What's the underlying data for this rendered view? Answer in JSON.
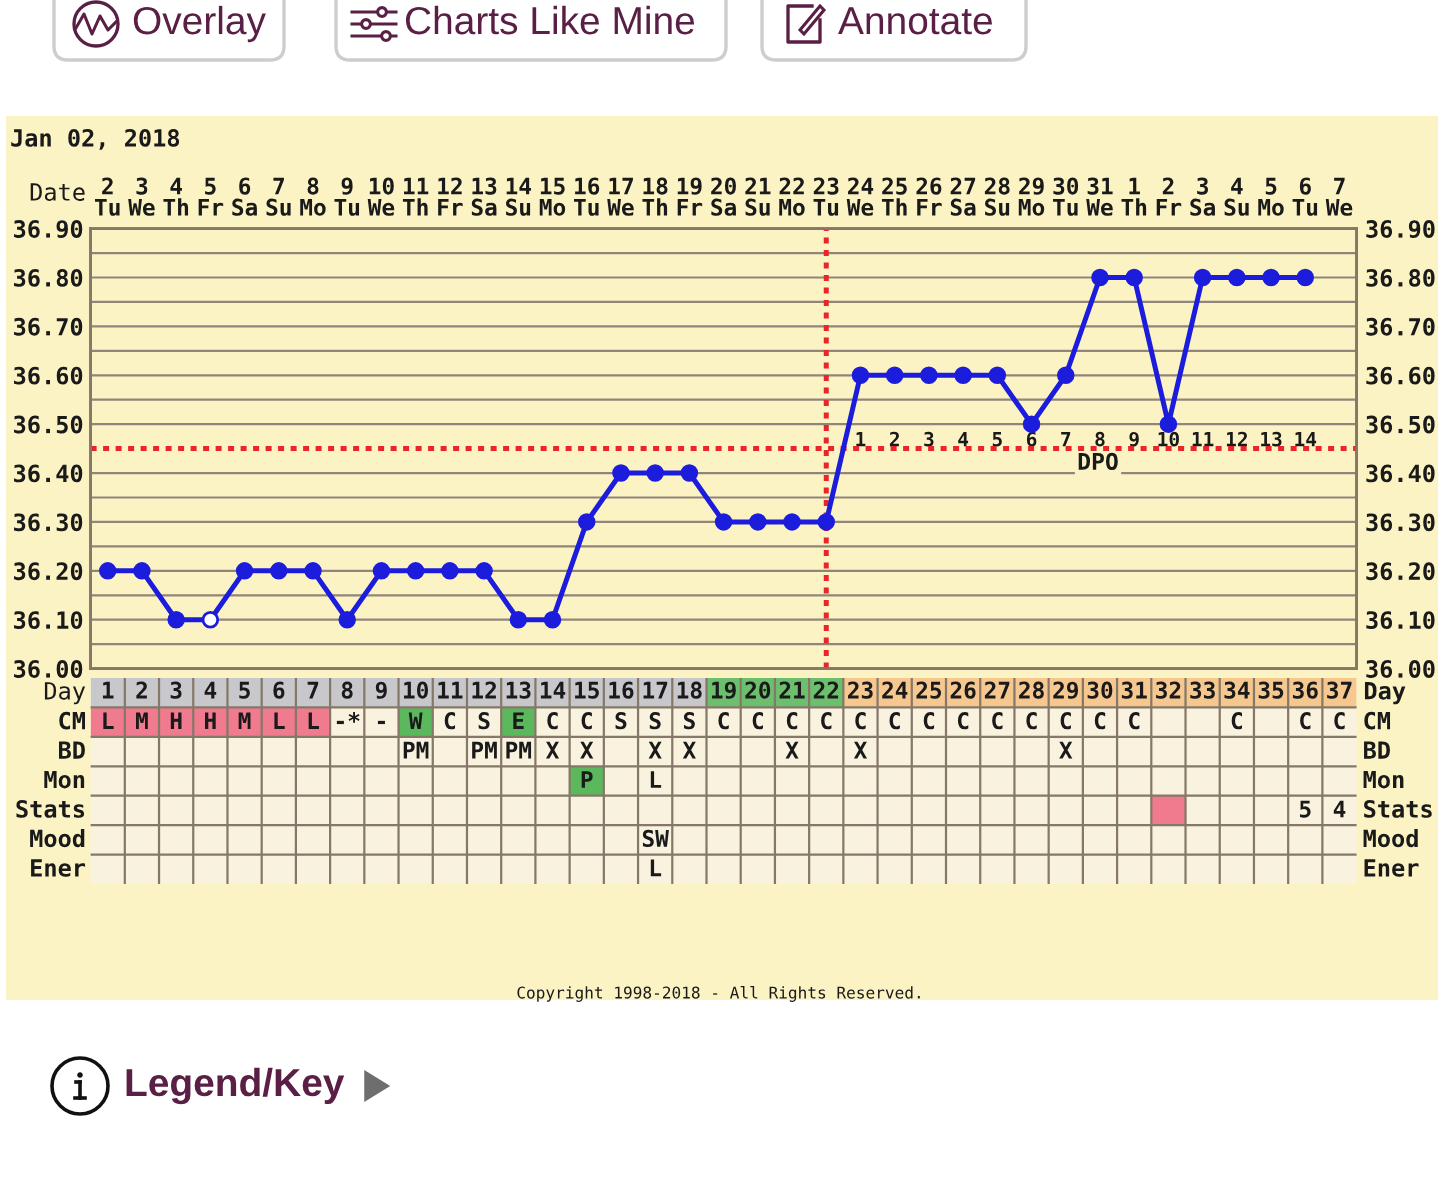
{
  "chart_data": [
    {
      "type": "other",
      "annotations": [
        "Overlay",
        "Charts Like Mine",
        "Annotate"
      ]
    },
    {
      "type": "line",
      "title": "Jan 02, 2018",
      "xlabel": "Day",
      "x2label": "Date",
      "x": [
        1,
        2,
        3,
        4,
        5,
        6,
        7,
        8,
        9,
        10,
        11,
        12,
        13,
        14,
        15,
        16,
        17,
        18,
        19,
        20,
        21,
        22,
        23,
        24,
        25,
        26,
        27,
        28,
        29,
        30,
        31,
        32,
        33,
        34,
        35,
        36
      ],
      "xlim": [
        0.5,
        37.5
      ],
      "xticks": [
        1,
        2,
        3,
        4,
        5,
        6,
        7,
        8,
        9,
        10,
        11,
        12,
        13,
        14,
        15,
        16,
        17,
        18,
        19,
        20,
        21,
        22,
        23,
        24,
        25,
        26,
        27,
        28,
        29,
        30,
        31,
        32,
        33,
        34,
        35,
        36,
        37
      ],
      "x2lim": [
        "2018-01-01T12:00",
        "2018-02-07T12:00"
      ],
      "x2ticks": [
        {
          "value": "2018-01-02",
          "label": "2\nTu"
        },
        {
          "value": "2018-01-03",
          "label": "3\nWe"
        },
        {
          "value": "2018-01-04",
          "label": "4\nTh"
        },
        {
          "value": "2018-01-05",
          "label": "5\nFr"
        },
        {
          "value": "2018-01-06",
          "label": "6\nSa"
        },
        {
          "value": "2018-01-07",
          "label": "7\nSu"
        },
        {
          "value": "2018-01-08",
          "label": "8\nMo"
        },
        {
          "value": "2018-01-09",
          "label": "9\nTu"
        },
        {
          "value": "2018-01-10",
          "label": "10\nWe"
        },
        {
          "value": "2018-01-11",
          "label": "11\nTh"
        },
        {
          "value": "2018-01-12",
          "label": "12\nFr"
        },
        {
          "value": "2018-01-13",
          "label": "13\nSa"
        },
        {
          "value": "2018-01-14",
          "label": "14\nSu"
        },
        {
          "value": "2018-01-15",
          "label": "15\nMo"
        },
        {
          "value": "2018-01-16",
          "label": "16\nTu"
        },
        {
          "value": "2018-01-17",
          "label": "17\nWe"
        },
        {
          "value": "2018-01-18",
          "label": "18\nTh"
        },
        {
          "value": "2018-01-19",
          "label": "19\nFr"
        },
        {
          "value": "2018-01-20",
          "label": "20\nSa"
        },
        {
          "value": "2018-01-21",
          "label": "21\nSu"
        },
        {
          "value": "2018-01-22",
          "label": "22\nMo"
        },
        {
          "value": "2018-01-23",
          "label": "23\nTu"
        },
        {
          "value": "2018-01-24",
          "label": "24\nWe"
        },
        {
          "value": "2018-01-25",
          "label": "25\nTh"
        },
        {
          "value": "2018-01-26",
          "label": "26\nFr"
        },
        {
          "value": "2018-01-27",
          "label": "27\nSa"
        },
        {
          "value": "2018-01-28",
          "label": "28\nSu"
        },
        {
          "value": "2018-01-29",
          "label": "29\nMo"
        },
        {
          "value": "2018-01-30",
          "label": "30\nTu"
        },
        {
          "value": "2018-01-31",
          "label": "31\nWe"
        },
        {
          "value": "2018-02-01",
          "label": "1\nTh"
        },
        {
          "value": "2018-02-02",
          "label": "2\nFr"
        },
        {
          "value": "2018-02-03",
          "label": "3\nSa"
        },
        {
          "value": "2018-02-04",
          "label": "4\nSu"
        },
        {
          "value": "2018-02-05",
          "label": "5\nMo"
        },
        {
          "value": "2018-02-06",
          "label": "6\nTu"
        },
        {
          "value": "2018-02-07",
          "label": "7\nWe"
        }
      ],
      "series": [
        {
          "color": "#1c1cdc",
          "values": [
            36.2,
            36.2,
            36.1,
            36.1,
            36.2,
            36.2,
            36.2,
            36.1,
            36.2,
            36.2,
            36.2,
            36.2,
            36.1,
            36.1,
            36.3,
            36.4,
            36.4,
            36.4,
            36.3,
            36.3,
            36.3,
            36.3,
            36.6,
            36.6,
            36.6,
            36.6,
            36.6,
            36.5,
            36.6,
            36.8,
            36.8,
            36.5,
            36.8,
            36.8,
            36.8,
            36.8
          ],
          "colors": [
            "#1c1cdc",
            "#1c1cdc",
            "#1c1cdc",
            "#ffffff",
            "#1c1cdc",
            "#1c1cdc",
            "#1c1cdc",
            "#1c1cdc",
            "#1c1cdc",
            "#1c1cdc",
            "#1c1cdc",
            "#1c1cdc",
            "#1c1cdc",
            "#1c1cdc",
            "#1c1cdc",
            "#1c1cdc",
            "#1c1cdc",
            "#1c1cdc",
            "#1c1cdc",
            "#1c1cdc",
            "#1c1cdc",
            "#1c1cdc",
            "#1c1cdc",
            "#1c1cdc",
            "#1c1cdc",
            "#1c1cdc",
            "#1c1cdc",
            "#1c1cdc",
            "#1c1cdc",
            "#1c1cdc",
            "#1c1cdc",
            "#1c1cdc",
            "#1c1cdc",
            "#1c1cdc",
            "#1c1cdc",
            "#1c1cdc"
          ]
        }
      ],
      "ylim": [
        36.0,
        36.9
      ],
      "yticks": [
        {
          "value": 36.0,
          "label": "36.00"
        },
        {
          "value": 36.05,
          "label": null
        },
        {
          "value": 36.1,
          "label": "36.10"
        },
        {
          "value": 36.15,
          "label": null
        },
        {
          "value": 36.2,
          "label": "36.20"
        },
        {
          "value": 36.25,
          "label": null
        },
        {
          "value": 36.3,
          "label": "36.30"
        },
        {
          "value": 36.35,
          "label": null
        },
        {
          "value": 36.4,
          "label": "36.40"
        },
        {
          "value": 36.5,
          "label": "36.50"
        },
        {
          "value": 36.55,
          "label": null
        },
        {
          "value": 36.6,
          "label": "36.60"
        },
        {
          "value": 36.65,
          "label": null
        },
        {
          "value": 36.7,
          "label": "36.70"
        },
        {
          "value": 36.75,
          "label": null
        },
        {
          "value": 36.8,
          "label": "36.80"
        },
        {
          "value": 36.85,
          "label": null
        },
        {
          "value": 36.9,
          "label": "36.90"
        }
      ],
      "y2lim": [
        36.0,
        36.9
      ],
      "y2ticks": [
        {
          "value": 36.0,
          "label": "36.00"
        },
        {
          "value": 36.05,
          "label": null
        },
        {
          "value": 36.1,
          "label": "36.10"
        },
        {
          "value": 36.15,
          "label": null
        },
        {
          "value": 36.2,
          "label": "36.20"
        },
        {
          "value": 36.25,
          "label": null
        },
        {
          "value": 36.3,
          "label": "36.30"
        },
        {
          "value": 36.35,
          "label": null
        },
        {
          "value": 36.4,
          "label": "36.40"
        },
        {
          "value": 36.5,
          "label": "36.50"
        },
        {
          "value": 36.55,
          "label": null
        },
        {
          "value": 36.6,
          "label": "36.60"
        },
        {
          "value": 36.65,
          "label": null
        },
        {
          "value": 36.7,
          "label": "36.70"
        },
        {
          "value": 36.75,
          "label": null
        },
        {
          "value": 36.8,
          "label": "36.80"
        },
        {
          "value": 36.85,
          "label": null
        },
        {
          "value": 36.9,
          "label": "36.90"
        }
      ],
      "grid": true,
      "marker": "circle",
      "line_style": "solid",
      "ref_lines": [
        {
          "axis": "y",
          "value": 36.45,
          "color": "#e8262a",
          "line_style": "dotted"
        },
        {
          "axis": "x",
          "value": 22,
          "color": "#e8262a",
          "line_style": "dotted"
        }
      ],
      "annotations": [
        {
          "text": "1",
          "x": 23,
          "y": 36.47
        },
        {
          "text": "2",
          "x": 24,
          "y": 36.47
        },
        {
          "text": "3",
          "x": 25,
          "y": 36.47
        },
        {
          "text": "4",
          "x": 26,
          "y": 36.47
        },
        {
          "text": "5",
          "x": 27,
          "y": 36.47
        },
        {
          "text": "6",
          "x": 28,
          "y": 36.47
        },
        {
          "text": "7",
          "x": 29,
          "y": 36.47
        },
        {
          "text": "8",
          "x": 30,
          "y": 36.47
        },
        {
          "text": "9",
          "x": 31,
          "y": 36.47
        },
        {
          "text": "10",
          "x": 32,
          "y": 36.47
        },
        {
          "text": "11",
          "x": 33,
          "y": 36.47
        },
        {
          "text": "12",
          "x": 34,
          "y": 36.47
        },
        {
          "text": "13",
          "x": 35,
          "y": 36.47
        },
        {
          "text": "14",
          "x": 36,
          "y": 36.47
        },
        "DPO"
      ]
    },
    {
      "type": "other",
      "y_categories": [
        null,
        "CM",
        "BD",
        "Mon",
        "Stats",
        "Mood",
        "Ener"
      ],
      "y2_categories": [
        null,
        "CM",
        "BD",
        "Mon",
        "Stats",
        "Mood",
        "Ener"
      ],
      "cell_labels": [
        [
          null,
          null,
          null,
          null,
          null,
          null,
          null,
          null,
          null,
          null,
          null,
          null,
          null,
          null,
          null,
          null,
          null,
          null,
          null,
          null,
          null,
          null,
          null,
          null,
          null,
          null,
          null,
          null,
          null,
          null,
          null,
          null,
          null,
          null,
          null,
          null,
          null
        ],
        [
          "L",
          "M",
          "H",
          "H",
          "M",
          "L",
          "L",
          "-*",
          "-",
          "W",
          "C",
          "S",
          "E",
          "C",
          "C",
          "S",
          "S",
          "S",
          "C",
          "C",
          "C",
          "C",
          "C",
          "C",
          "C",
          "C",
          "C",
          "C",
          "C",
          "C",
          "C",
          null,
          null,
          "C",
          null,
          "C",
          "C"
        ],
        [
          null,
          null,
          null,
          null,
          null,
          null,
          null,
          null,
          null,
          "PM",
          null,
          "PM",
          "PM",
          "X",
          "X",
          null,
          "X",
          "X",
          null,
          null,
          "X",
          null,
          "X",
          null,
          null,
          null,
          null,
          null,
          "X",
          null,
          null,
          null,
          null,
          null,
          null,
          null,
          null
        ],
        [
          null,
          null,
          null,
          null,
          null,
          null,
          null,
          null,
          null,
          null,
          null,
          null,
          null,
          null,
          "P",
          null,
          "L",
          null,
          null,
          null,
          null,
          null,
          null,
          null,
          null,
          null,
          null,
          null,
          null,
          null,
          null,
          null,
          null,
          null,
          null,
          null,
          null
        ],
        [
          null,
          null,
          null,
          null,
          null,
          null,
          null,
          null,
          null,
          null,
          null,
          null,
          null,
          null,
          null,
          null,
          null,
          null,
          null,
          null,
          null,
          null,
          null,
          null,
          null,
          null,
          null,
          null,
          null,
          null,
          null,
          null,
          null,
          null,
          null,
          "5",
          "4"
        ],
        [
          null,
          null,
          null,
          null,
          null,
          null,
          null,
          null,
          null,
          null,
          null,
          null,
          null,
          null,
          null,
          null,
          "SW",
          null,
          null,
          null,
          null,
          null,
          null,
          null,
          null,
          null,
          null,
          null,
          null,
          null,
          null,
          null,
          null,
          null,
          null,
          null,
          null
        ],
        [
          null,
          null,
          null,
          null,
          null,
          null,
          null,
          null,
          null,
          null,
          null,
          null,
          null,
          null,
          null,
          null,
          "L",
          null,
          null,
          null,
          null,
          null,
          null,
          null,
          null,
          null,
          null,
          null,
          null,
          null,
          null,
          null,
          null,
          null,
          null,
          null,
          null
        ]
      ],
      "colors": [
        [
          "#c8c8cc",
          "#c8c8cc",
          "#c8c8cc",
          "#c8c8cc",
          "#c8c8cc",
          "#c8c8cc",
          "#c8c8cc",
          "#c8c8cc",
          "#c8c8cc",
          "#c8c8cc",
          "#c8c8cc",
          "#c8c8cc",
          "#c8c8cc",
          "#c8c8cc",
          "#c8c8cc",
          "#c8c8cc",
          "#c8c8cc",
          "#c8c8cc",
          "#6cbf6c",
          "#6cbf6c",
          "#6cbf6c",
          "#6cbf6c",
          "#f6c88f",
          "#f6c88f",
          "#f6c88f",
          "#f6c88f",
          "#f6c88f",
          "#f6c88f",
          "#f6c88f",
          "#f6c88f",
          "#f6c88f",
          "#f6c88f",
          "#f6c88f",
          "#f6c88f",
          "#f6c88f",
          "#f6c88f",
          "#f6c88f"
        ],
        [
          "#f07a8e",
          "#f07a8e",
          "#f07a8e",
          "#f07a8e",
          "#f07a8e",
          "#f07a8e",
          "#f07a8e",
          null,
          null,
          "#5cb85c",
          null,
          null,
          "#5cb85c",
          null,
          null,
          null,
          null,
          null,
          null,
          null,
          null,
          null,
          null,
          null,
          null,
          null,
          null,
          null,
          null,
          null,
          null,
          null,
          null,
          null,
          null,
          null,
          null
        ],
        null,
        [
          null,
          null,
          null,
          null,
          null,
          null,
          null,
          null,
          null,
          null,
          null,
          null,
          null,
          null,
          "#5cb85c",
          null,
          null,
          null,
          null,
          null,
          null,
          null,
          null,
          null,
          null,
          null,
          null,
          null,
          null,
          null,
          null,
          null,
          null,
          null,
          null,
          null,
          null
        ],
        [
          null,
          null,
          null,
          null,
          null,
          null,
          null,
          null,
          null,
          null,
          null,
          null,
          null,
          null,
          null,
          null,
          null,
          null,
          null,
          null,
          null,
          null,
          null,
          null,
          null,
          null,
          null,
          null,
          null,
          null,
          null,
          "#f07a8e",
          null,
          null,
          null,
          null,
          null
        ],
        null,
        null
      ],
      "annotations": [
        "Copyright 1998-2018 - All Rights Reserved."
      ]
    },
    {
      "type": "other",
      "annotations": [
        "Legend/Key"
      ]
    }
  ]
}
